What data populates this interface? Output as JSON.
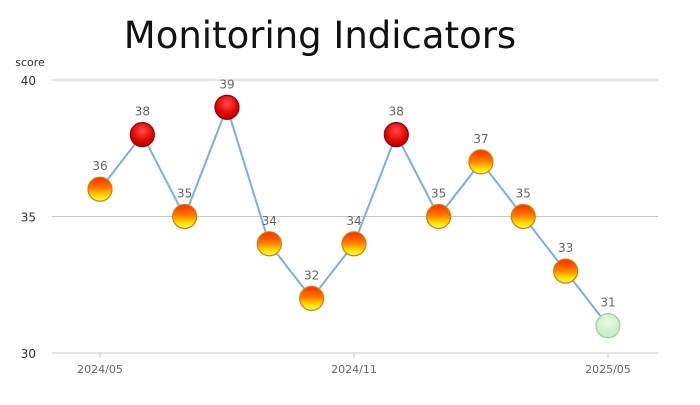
{
  "chart_data": {
    "type": "line",
    "title": "Monitoring Indicators",
    "ylabel": "score",
    "xlabel": "",
    "ylim": [
      30,
      40
    ],
    "yticks": [
      30,
      35,
      40
    ],
    "x_tick_labels": [
      "2024/05",
      "2024/11",
      "2025/05"
    ],
    "x_tick_indices": [
      0,
      6,
      12
    ],
    "grid": true,
    "legend": false,
    "series": [
      {
        "values": [
          36,
          38,
          35,
          39,
          34,
          32,
          34,
          38,
          35,
          37,
          35,
          33,
          31
        ]
      }
    ],
    "colors": {
      "line": "#7ab0e0",
      "red_marker": "#e00000",
      "orange_marker": "#ff3b00",
      "yellow_marker": "#ffe600",
      "green_marker": "#c8f0c8",
      "gridline": "#c8c8c8",
      "label": "#666666"
    }
  }
}
